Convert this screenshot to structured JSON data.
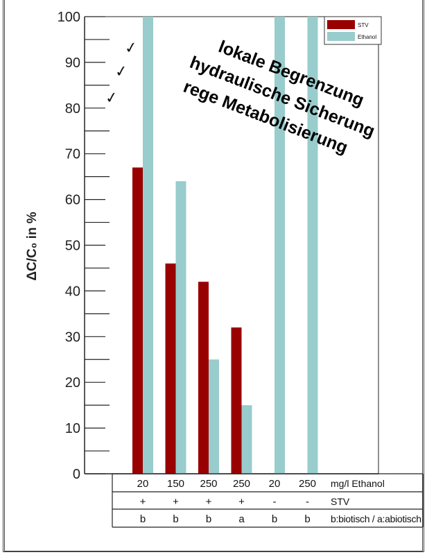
{
  "chart_data": {
    "type": "bar",
    "title": "",
    "xlabel": "",
    "ylabel": "ΔC/C₀  in  %",
    "ylim": [
      0,
      100
    ],
    "yticks": [
      0,
      10,
      20,
      30,
      40,
      50,
      60,
      70,
      80,
      90,
      100
    ],
    "grid": false,
    "legend_position": "top-right",
    "categories": [
      "20 / + / b",
      "150 / + / b",
      "250 / + / b",
      "250 / + / a",
      "20 / - / b",
      "250 / - / b"
    ],
    "series": [
      {
        "name": "STV",
        "color": "#990000",
        "values": [
          67,
          46,
          42,
          32,
          null,
          null
        ]
      },
      {
        "name": "Ethanol",
        "color": "#99cccc",
        "values": [
          100,
          64,
          25,
          15,
          100,
          100
        ]
      }
    ],
    "table": {
      "rows": [
        {
          "values": [
            "20",
            "150",
            "250",
            "250",
            "20",
            "250"
          ],
          "label": "mg/l Ethanol"
        },
        {
          "values": [
            "+",
            "+",
            "+",
            "+",
            "-",
            "-"
          ],
          "label": "STV"
        },
        {
          "values": [
            "b",
            "b",
            "b",
            "a",
            "b",
            "b"
          ],
          "label": "b:biotisch / a:abiotisch"
        }
      ]
    },
    "annotations": [
      "lokale Begrenzung",
      "hydraulische Sicherung",
      "rege Metabolisierung"
    ],
    "checkmarks": [
      "✓",
      "✓",
      "✓"
    ]
  }
}
